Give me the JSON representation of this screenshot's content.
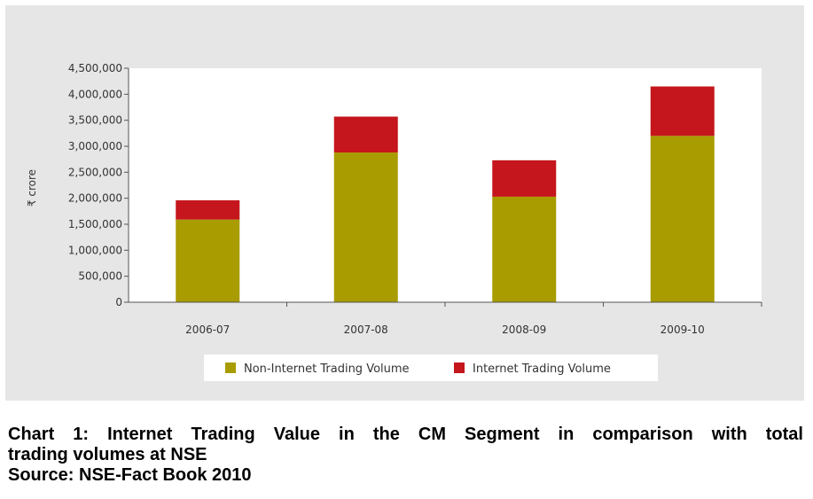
{
  "chart_data": {
    "type": "bar",
    "stacked": true,
    "categories": [
      "2006-07",
      "2007-08",
      "2008-09",
      "2009-10"
    ],
    "series": [
      {
        "name": "Non-Internet Trading Volume",
        "color": "#a89c00",
        "values": [
          1590000,
          2880000,
          2030000,
          3200000
        ]
      },
      {
        "name": "Internet Trading Volume",
        "color": "#c4161c",
        "values": [
          370000,
          690000,
          700000,
          950000
        ]
      }
    ],
    "ylabel": "₹ crore",
    "ylim": [
      0,
      4500000
    ],
    "yticks": [
      0,
      500000,
      1000000,
      1500000,
      2000000,
      2500000,
      3000000,
      3500000,
      4000000,
      4500000
    ],
    "ytick_labels": [
      "0",
      "500,000",
      "1,000,000",
      "1,500,000",
      "2,000,000",
      "2,500,000",
      "3,000,000",
      "3,500,000",
      "4,000,000",
      "4,500,000"
    ],
    "grid": false,
    "legend": "bottom"
  },
  "caption": {
    "line1": "Chart 1: Internet Trading Value in the CM Segment in comparison with total",
    "line2": "trading volumes at NSE",
    "line3": "Source: NSE-Fact Book 2010"
  }
}
